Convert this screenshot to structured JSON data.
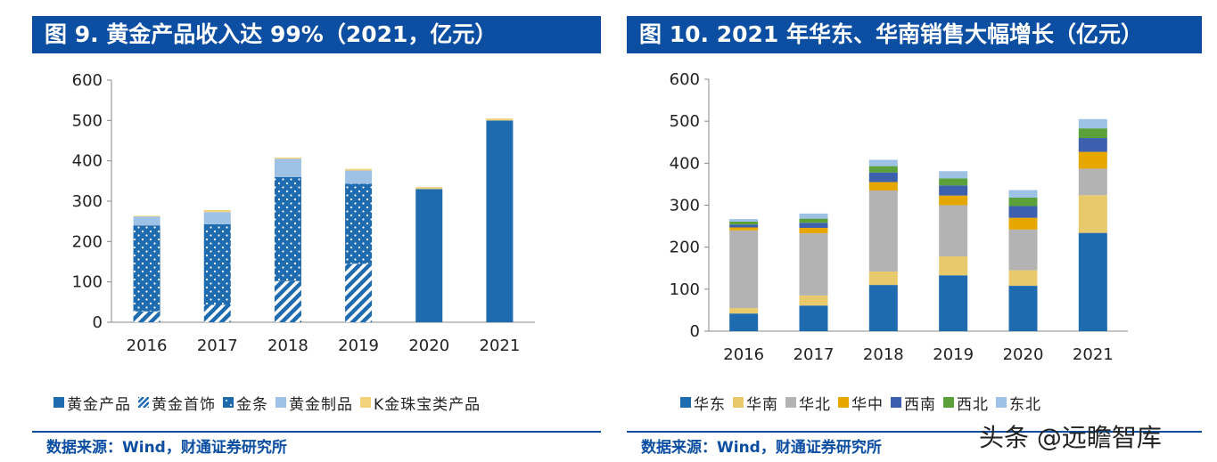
{
  "watermark": "头条 @远瞻智库",
  "charts": [
    {
      "id": "left",
      "title": "图 9. 黄金产品收入达 99%（2021，亿元）",
      "source": "数据来源：Wind，财通证券研究所",
      "legend_marker": "■",
      "chart_data": {
        "type": "bar",
        "stacked": true,
        "categories": [
          "2016",
          "2017",
          "2018",
          "2019",
          "2020",
          "2021"
        ],
        "ylim": [
          0,
          600
        ],
        "yticks": [
          0,
          100,
          200,
          300,
          400,
          500,
          600
        ],
        "grid": false,
        "legend_position": "bottom",
        "series": [
          {
            "name": "黄金产品",
            "color": "#1f6bb0",
            "pattern": "solid",
            "values": [
              0,
              0,
              0,
              0,
              330,
              500
            ]
          },
          {
            "name": "黄金首饰",
            "color": "#1f6bb0",
            "pattern": "hatch",
            "values": [
              27,
              43,
              102,
              145,
              0,
              0
            ]
          },
          {
            "name": "金条",
            "color": "#1f6bb0",
            "pattern": "dots",
            "values": [
              213,
              200,
              258,
              198,
              0,
              0
            ]
          },
          {
            "name": "黄金制品",
            "color": "#9ec2e6",
            "pattern": "solid",
            "values": [
              22,
              30,
              45,
              33,
              0,
              0
            ]
          },
          {
            "name": "K金珠宝类产品",
            "color": "#f2d27a",
            "pattern": "solid",
            "values": [
              2,
              5,
              3,
              4,
              5,
              5
            ]
          }
        ]
      }
    },
    {
      "id": "right",
      "title": "图 10. 2021 年华东、华南销售大幅增长（亿元）",
      "source": "数据来源：Wind，财通证券研究所",
      "legend_marker": "■",
      "chart_data": {
        "type": "bar",
        "stacked": true,
        "categories": [
          "2016",
          "2017",
          "2018",
          "2019",
          "2020",
          "2021"
        ],
        "ylim": [
          0,
          600
        ],
        "yticks": [
          0,
          100,
          200,
          300,
          400,
          500,
          600
        ],
        "grid": false,
        "legend_position": "bottom",
        "series": [
          {
            "name": "华东",
            "color": "#1f6bb0",
            "pattern": "solid",
            "values": [
              42,
              61,
              110,
              133,
              108,
              234
            ]
          },
          {
            "name": "华南",
            "color": "#e8c96c",
            "pattern": "solid",
            "values": [
              13,
              24,
              32,
              45,
              37,
              90
            ]
          },
          {
            "name": "华北",
            "color": "#b3b3b3",
            "pattern": "solid",
            "values": [
              185,
              148,
              193,
              122,
              97,
              63
            ]
          },
          {
            "name": "华中",
            "color": "#e6a800",
            "pattern": "solid",
            "values": [
              7,
              13,
              20,
              23,
              28,
              40
            ]
          },
          {
            "name": "西南",
            "color": "#3c60ad",
            "pattern": "solid",
            "values": [
              7,
              12,
              23,
              24,
              28,
              33
            ]
          },
          {
            "name": "西北",
            "color": "#5aa13c",
            "pattern": "solid",
            "values": [
              7,
              10,
              15,
              17,
              20,
              23
            ]
          },
          {
            "name": "东北",
            "color": "#9ec2e6",
            "pattern": "solid",
            "values": [
              6,
              12,
              15,
              17,
              18,
              22
            ]
          }
        ]
      }
    }
  ]
}
